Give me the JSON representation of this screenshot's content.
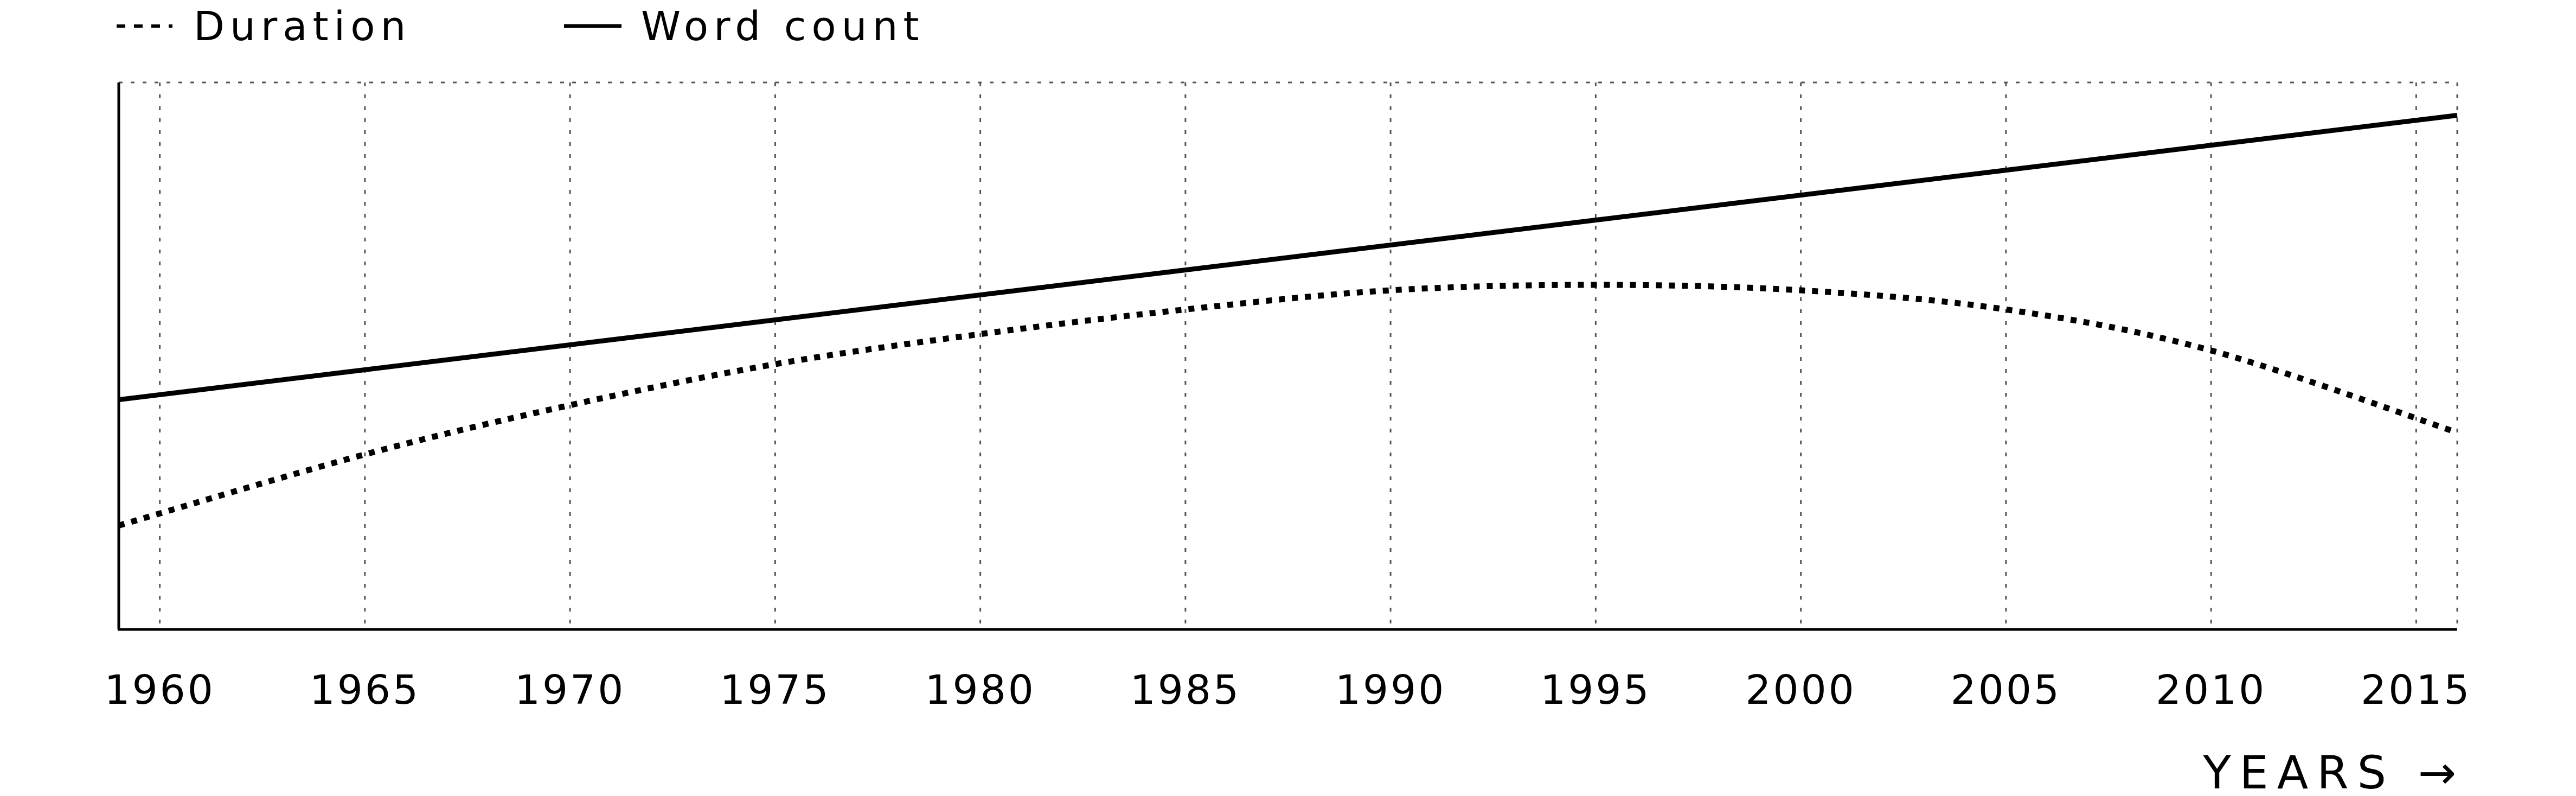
{
  "chart_data": {
    "type": "line",
    "x_axis_title": "YEARS →",
    "xlim": [
      1959,
      2016
    ],
    "ylim": [
      0,
      100
    ],
    "x_ticks": [
      1960,
      1965,
      1970,
      1975,
      1980,
      1985,
      1990,
      1995,
      2000,
      2005,
      2010,
      2015
    ],
    "x_tick_labels": [
      "1960",
      "1965",
      "1970",
      "1975",
      "1980",
      "1985",
      "1990",
      "1995",
      "2000",
      "2005",
      "2010",
      "2015"
    ],
    "grid": "vertical dotted lines at each tick and the chart edges",
    "legend_position": "top-left",
    "series": [
      {
        "name": "Duration",
        "line_style": "dotted",
        "x": [
          1959,
          1965,
          1970,
          1975,
          1980,
          1985,
          1990,
          1995,
          2000,
          2005,
          2010,
          2016
        ],
        "values": [
          19,
          32,
          41,
          48.5,
          54,
          58.5,
          62,
          63,
          62,
          58.5,
          51,
          36
        ]
      },
      {
        "name": "Word count",
        "line_style": "solid",
        "x": [
          1959,
          2016
        ],
        "values": [
          42,
          94
        ]
      }
    ],
    "colors": {
      "line": "#000000",
      "grid": "#555555",
      "background": "#ffffff"
    }
  }
}
